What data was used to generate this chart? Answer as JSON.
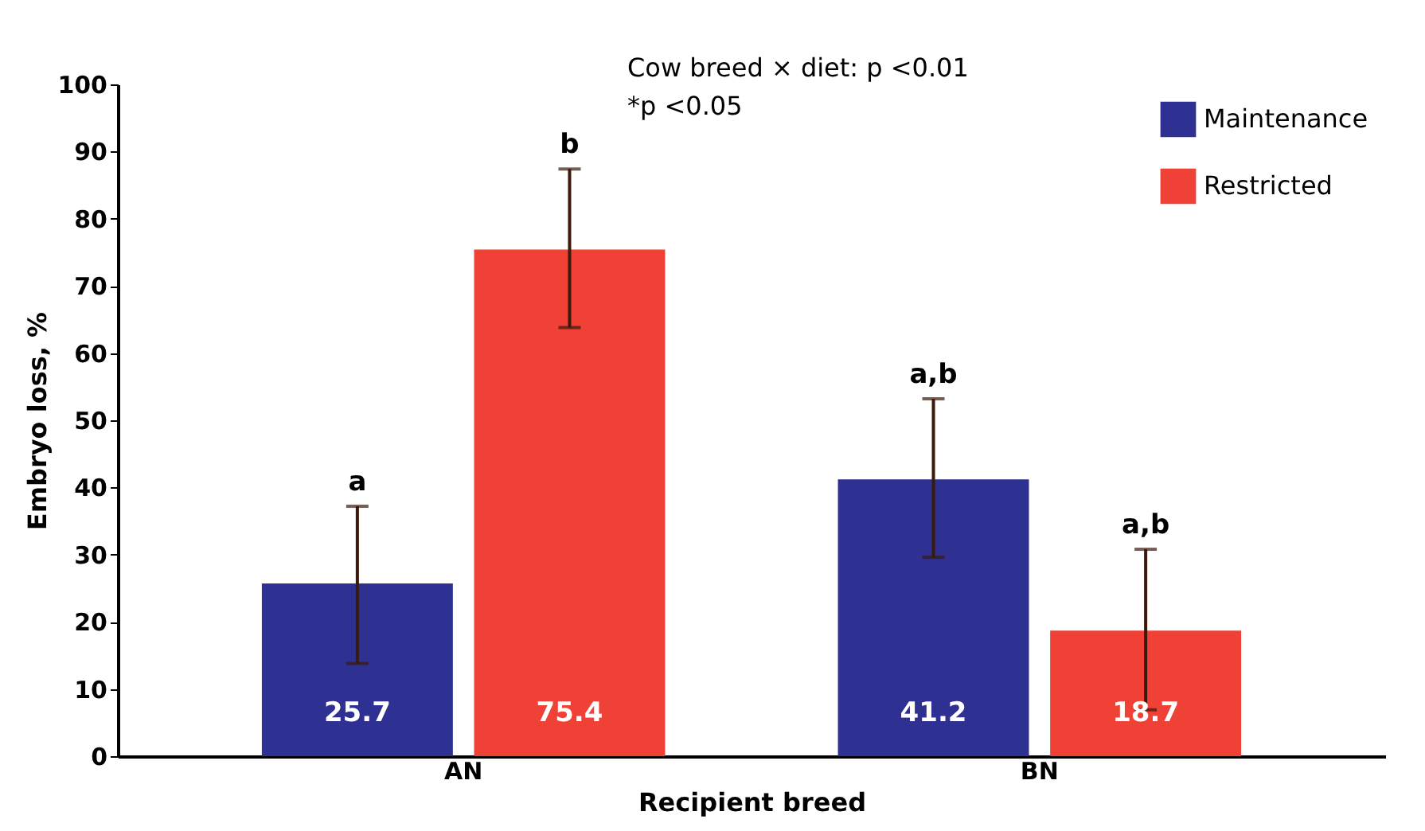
{
  "chart_data": {
    "type": "bar",
    "xlabel": "Recipient breed",
    "ylabel": "Embryo loss, %",
    "categories": [
      "AN",
      "BN"
    ],
    "series": [
      {
        "name": "Maintenance",
        "color": "#2e3192",
        "values": [
          25.7,
          41.2
        ],
        "errors": [
          [
            13.8,
            37.2
          ],
          [
            29.6,
            53.2
          ]
        ]
      },
      {
        "name": "Restricted",
        "color": "#ef4136",
        "values": [
          75.4,
          18.7
        ],
        "errors": [
          [
            63.8,
            87.4
          ],
          [
            6.9,
            30.8
          ]
        ]
      }
    ],
    "ylim": [
      0,
      100
    ],
    "yticks": [
      0,
      10,
      20,
      30,
      40,
      50,
      60,
      70,
      80,
      90,
      100
    ],
    "grid": false,
    "legend": "top right",
    "data_labels": true,
    "annotations": [
      "a",
      "b",
      "a,b",
      "a,b",
      "Cow breed × diet: p <0.01",
      "*p <0.05"
    ]
  }
}
